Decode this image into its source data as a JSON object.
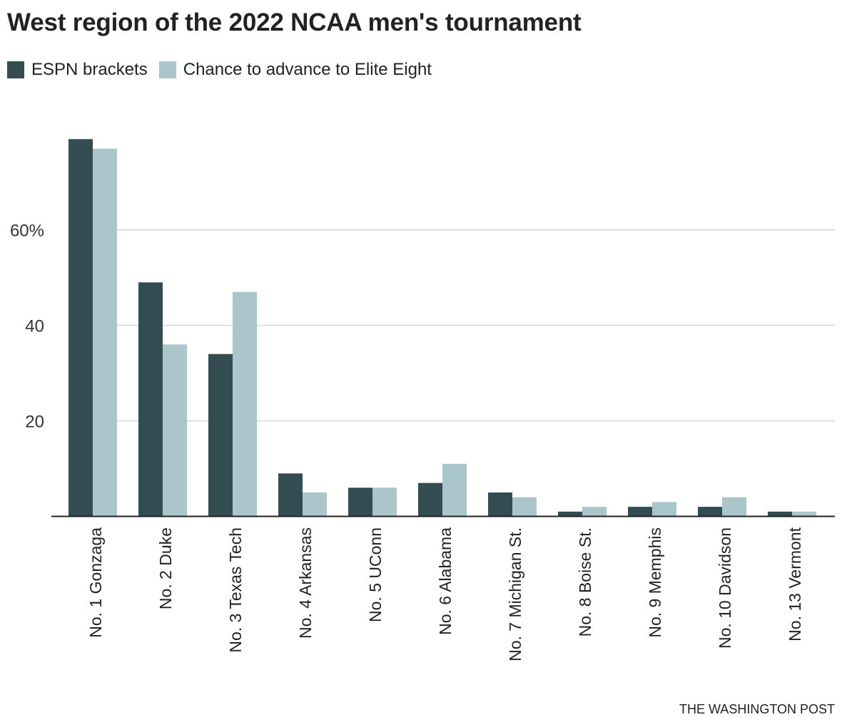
{
  "title": "West region of the 2022 NCAA men's tournament",
  "source": "THE WASHINGTON POST",
  "chart_data": {
    "type": "bar",
    "title": "West region of the 2022 NCAA men's tournament",
    "xlabel": "",
    "ylabel": "",
    "ylim": [
      0,
      80
    ],
    "yticks": [
      20,
      40,
      60
    ],
    "ytick_labels": [
      "20",
      "40",
      "60%"
    ],
    "grid": true,
    "legend_position": "top-left",
    "categories": [
      "No. 1 Gonzaga",
      "No. 2 Duke",
      "No. 3 Texas Tech",
      "No. 4 Arkansas",
      "No. 5 UConn",
      "No. 6 Alabama",
      "No. 7 Michigan St.",
      "No. 8 Boise St.",
      "No. 9 Memphis",
      "No. 10 Davidson",
      "No. 13 Vermont"
    ],
    "series": [
      {
        "name": "ESPN brackets",
        "color": "#324c52",
        "values": [
          79,
          49,
          34,
          9,
          6,
          7,
          5,
          1,
          2,
          2,
          1
        ]
      },
      {
        "name": "Chance to advance to Elite Eight",
        "color": "#abc6ca",
        "values": [
          77,
          36,
          47,
          5,
          6,
          11,
          4,
          2,
          3,
          4,
          1
        ]
      }
    ]
  }
}
